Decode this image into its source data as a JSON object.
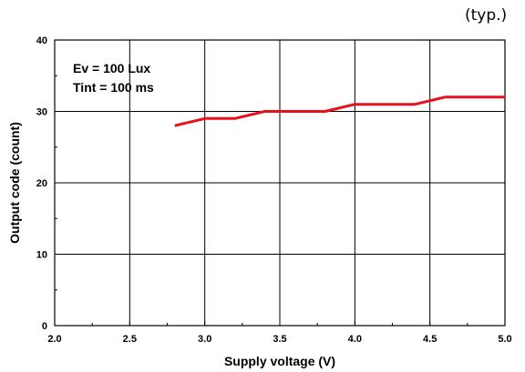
{
  "chart_data": {
    "type": "line",
    "note": "(typ.)",
    "xlabel": "Supply voltage (V)",
    "ylabel": "Output code (count)",
    "xlim": [
      2.0,
      5.0
    ],
    "ylim": [
      0,
      40
    ],
    "x_ticks": [
      "2.0",
      "2.5",
      "3.0",
      "3.5",
      "4.0",
      "4.5",
      "5.0"
    ],
    "y_ticks": [
      "0",
      "10",
      "20",
      "30",
      "40"
    ],
    "grid": true,
    "annotations": [
      "Ev = 100 Lux",
      "Tint = 100 ms"
    ],
    "series_color": "#e8101a",
    "series": [
      {
        "x": [
          2.8,
          3.0,
          3.2,
          3.4,
          3.8,
          4.0,
          4.4,
          4.6,
          5.0
        ],
        "y": [
          28,
          29,
          29,
          30,
          30,
          31,
          31,
          32,
          32
        ]
      }
    ]
  }
}
